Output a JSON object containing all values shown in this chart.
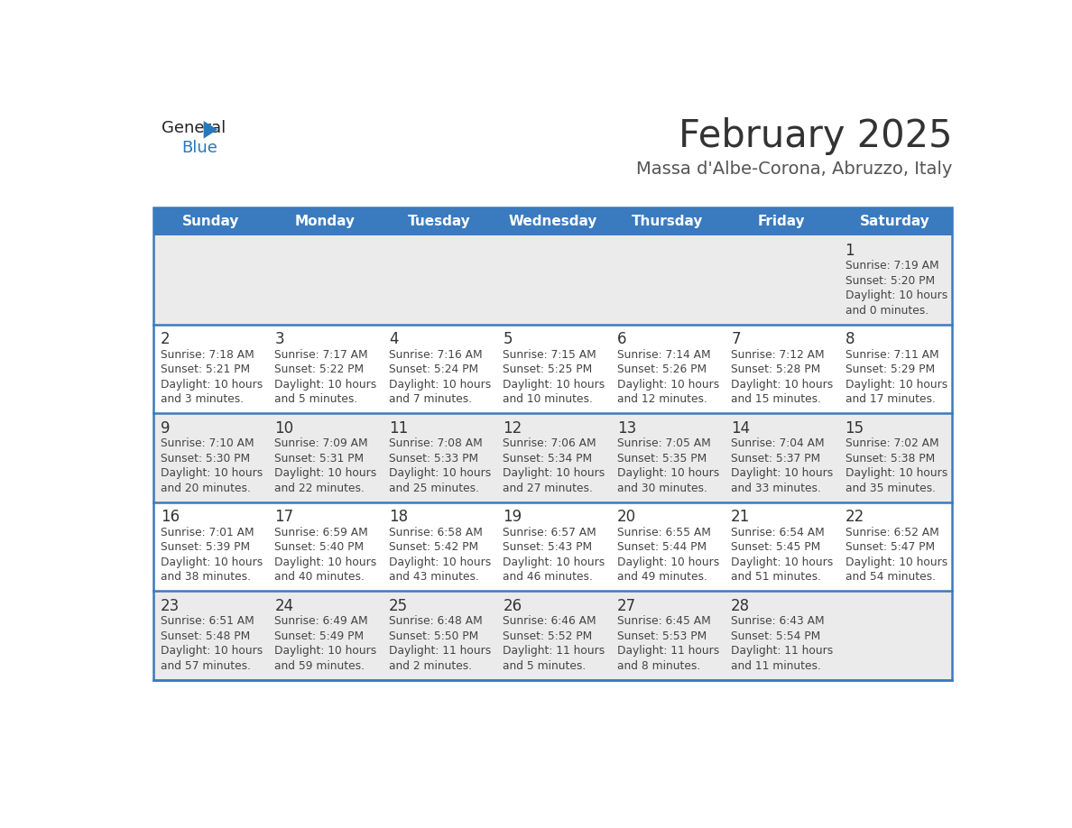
{
  "title": "February 2025",
  "subtitle": "Massa d'Albe-Corona, Abruzzo, Italy",
  "days_of_week": [
    "Sunday",
    "Monday",
    "Tuesday",
    "Wednesday",
    "Thursday",
    "Friday",
    "Saturday"
  ],
  "header_bg": "#3a7abf",
  "header_text_color": "#ffffff",
  "cell_bg_light": "#ebebeb",
  "cell_bg_white": "#ffffff",
  "row_line_color": "#3a7abf",
  "text_color": "#444444",
  "day_number_color": "#333333",
  "title_color": "#333333",
  "subtitle_color": "#555555",
  "logo_general_color": "#222222",
  "logo_blue_color": "#2878be",
  "calendar": [
    [
      null,
      null,
      null,
      null,
      null,
      null,
      {
        "day": 1,
        "sunrise": "7:19 AM",
        "sunset": "5:20 PM",
        "daylight_h": "10 hours",
        "daylight_m": "and 0 minutes."
      }
    ],
    [
      {
        "day": 2,
        "sunrise": "7:18 AM",
        "sunset": "5:21 PM",
        "daylight_h": "10 hours",
        "daylight_m": "and 3 minutes."
      },
      {
        "day": 3,
        "sunrise": "7:17 AM",
        "sunset": "5:22 PM",
        "daylight_h": "10 hours",
        "daylight_m": "and 5 minutes."
      },
      {
        "day": 4,
        "sunrise": "7:16 AM",
        "sunset": "5:24 PM",
        "daylight_h": "10 hours",
        "daylight_m": "and 7 minutes."
      },
      {
        "day": 5,
        "sunrise": "7:15 AM",
        "sunset": "5:25 PM",
        "daylight_h": "10 hours",
        "daylight_m": "and 10 minutes."
      },
      {
        "day": 6,
        "sunrise": "7:14 AM",
        "sunset": "5:26 PM",
        "daylight_h": "10 hours",
        "daylight_m": "and 12 minutes."
      },
      {
        "day": 7,
        "sunrise": "7:12 AM",
        "sunset": "5:28 PM",
        "daylight_h": "10 hours",
        "daylight_m": "and 15 minutes."
      },
      {
        "day": 8,
        "sunrise": "7:11 AM",
        "sunset": "5:29 PM",
        "daylight_h": "10 hours",
        "daylight_m": "and 17 minutes."
      }
    ],
    [
      {
        "day": 9,
        "sunrise": "7:10 AM",
        "sunset": "5:30 PM",
        "daylight_h": "10 hours",
        "daylight_m": "and 20 minutes."
      },
      {
        "day": 10,
        "sunrise": "7:09 AM",
        "sunset": "5:31 PM",
        "daylight_h": "10 hours",
        "daylight_m": "and 22 minutes."
      },
      {
        "day": 11,
        "sunrise": "7:08 AM",
        "sunset": "5:33 PM",
        "daylight_h": "10 hours",
        "daylight_m": "and 25 minutes."
      },
      {
        "day": 12,
        "sunrise": "7:06 AM",
        "sunset": "5:34 PM",
        "daylight_h": "10 hours",
        "daylight_m": "and 27 minutes."
      },
      {
        "day": 13,
        "sunrise": "7:05 AM",
        "sunset": "5:35 PM",
        "daylight_h": "10 hours",
        "daylight_m": "and 30 minutes."
      },
      {
        "day": 14,
        "sunrise": "7:04 AM",
        "sunset": "5:37 PM",
        "daylight_h": "10 hours",
        "daylight_m": "and 33 minutes."
      },
      {
        "day": 15,
        "sunrise": "7:02 AM",
        "sunset": "5:38 PM",
        "daylight_h": "10 hours",
        "daylight_m": "and 35 minutes."
      }
    ],
    [
      {
        "day": 16,
        "sunrise": "7:01 AM",
        "sunset": "5:39 PM",
        "daylight_h": "10 hours",
        "daylight_m": "and 38 minutes."
      },
      {
        "day": 17,
        "sunrise": "6:59 AM",
        "sunset": "5:40 PM",
        "daylight_h": "10 hours",
        "daylight_m": "and 40 minutes."
      },
      {
        "day": 18,
        "sunrise": "6:58 AM",
        "sunset": "5:42 PM",
        "daylight_h": "10 hours",
        "daylight_m": "and 43 minutes."
      },
      {
        "day": 19,
        "sunrise": "6:57 AM",
        "sunset": "5:43 PM",
        "daylight_h": "10 hours",
        "daylight_m": "and 46 minutes."
      },
      {
        "day": 20,
        "sunrise": "6:55 AM",
        "sunset": "5:44 PM",
        "daylight_h": "10 hours",
        "daylight_m": "and 49 minutes."
      },
      {
        "day": 21,
        "sunrise": "6:54 AM",
        "sunset": "5:45 PM",
        "daylight_h": "10 hours",
        "daylight_m": "and 51 minutes."
      },
      {
        "day": 22,
        "sunrise": "6:52 AM",
        "sunset": "5:47 PM",
        "daylight_h": "10 hours",
        "daylight_m": "and 54 minutes."
      }
    ],
    [
      {
        "day": 23,
        "sunrise": "6:51 AM",
        "sunset": "5:48 PM",
        "daylight_h": "10 hours",
        "daylight_m": "and 57 minutes."
      },
      {
        "day": 24,
        "sunrise": "6:49 AM",
        "sunset": "5:49 PM",
        "daylight_h": "10 hours",
        "daylight_m": "and 59 minutes."
      },
      {
        "day": 25,
        "sunrise": "6:48 AM",
        "sunset": "5:50 PM",
        "daylight_h": "11 hours",
        "daylight_m": "and 2 minutes."
      },
      {
        "day": 26,
        "sunrise": "6:46 AM",
        "sunset": "5:52 PM",
        "daylight_h": "11 hours",
        "daylight_m": "and 5 minutes."
      },
      {
        "day": 27,
        "sunrise": "6:45 AM",
        "sunset": "5:53 PM",
        "daylight_h": "11 hours",
        "daylight_m": "and 8 minutes."
      },
      {
        "day": 28,
        "sunrise": "6:43 AM",
        "sunset": "5:54 PM",
        "daylight_h": "11 hours",
        "daylight_m": "and 11 minutes."
      },
      null
    ]
  ]
}
